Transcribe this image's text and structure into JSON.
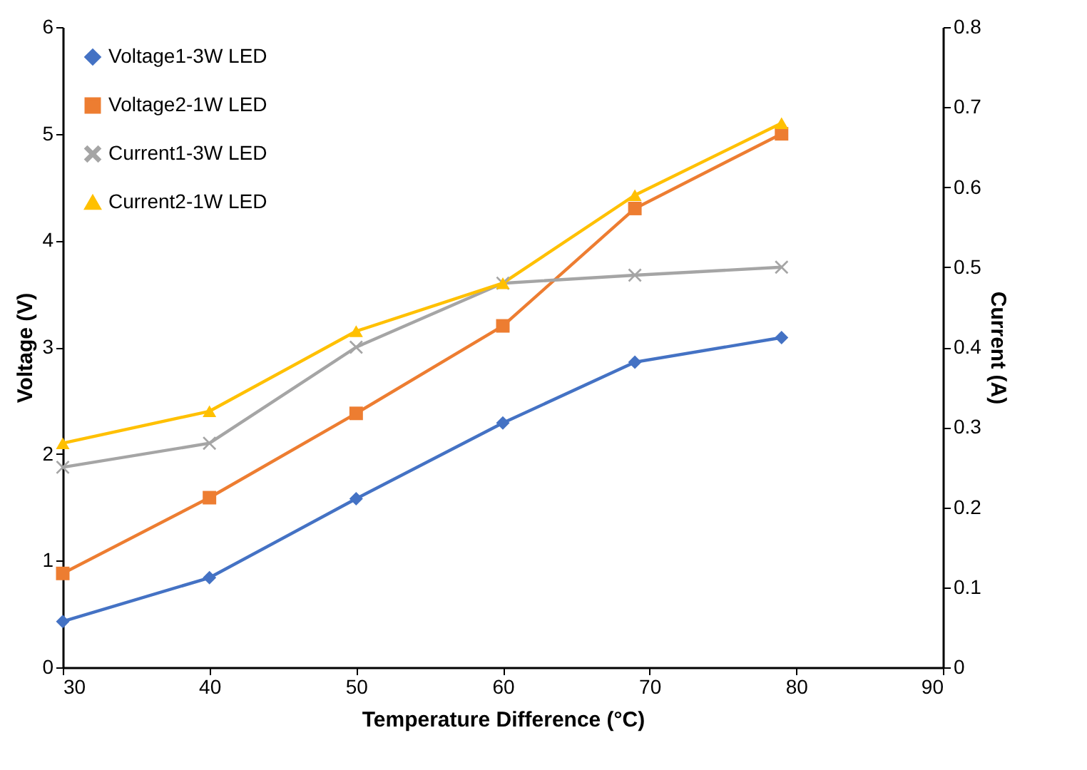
{
  "chart_data": {
    "type": "line",
    "xlabel": "Temperature Difference (°C)",
    "ylabel": "Voltage (V)",
    "y2label": "Current (A)",
    "xlim": [
      30,
      90
    ],
    "xticks": [
      30,
      40,
      50,
      60,
      70,
      80,
      90
    ],
    "ylim": [
      0,
      6
    ],
    "yticks": [
      0,
      1,
      2,
      3,
      4,
      5,
      6
    ],
    "y2lim": [
      0,
      0.8
    ],
    "y2ticks": [
      0,
      0.1,
      0.2,
      0.3,
      0.4,
      0.5,
      0.6,
      0.7,
      0.8
    ],
    "legend": "top left",
    "grid": false,
    "x": [
      30,
      40,
      50,
      60,
      69,
      79
    ],
    "series": [
      {
        "name": "Voltage1-3W LED",
        "color": "#4472c4",
        "marker": "diamond",
        "values": [
          0.43,
          0.84,
          1.58,
          2.29,
          2.86,
          3.09
        ]
      },
      {
        "name": "Voltage2-1W LED",
        "color": "#ed7d31",
        "marker": "square",
        "values": [
          0.88,
          1.59,
          2.38,
          3.2,
          4.3,
          5.0
        ]
      },
      {
        "name": "Current1-3W LED",
        "color": "#a5a5a5",
        "marker": "cross",
        "axis": "y2",
        "values": [
          0.25,
          0.28,
          0.4,
          0.48,
          0.49,
          0.5
        ]
      },
      {
        "name": "Current2-1W LED",
        "color": "#ffc000",
        "marker": "triangle",
        "axis": "y2",
        "values": [
          0.28,
          0.32,
          0.42,
          0.48,
          0.59,
          0.68
        ]
      }
    ]
  }
}
